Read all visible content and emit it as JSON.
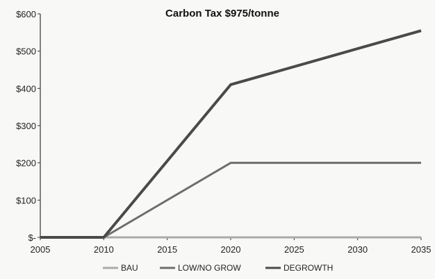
{
  "chart_data": {
    "type": "line",
    "title": "Carbon Tax $975/tonne",
    "xlabel": "",
    "ylabel": "",
    "x_ticks": [
      "2005",
      "2010",
      "2015",
      "2020",
      "2025",
      "2030",
      "2035"
    ],
    "y_ticks": [
      "$-",
      "$100",
      "$200",
      "$300",
      "$400",
      "$500",
      "$600"
    ],
    "xlim": [
      2005,
      2035
    ],
    "ylim": [
      0,
      600
    ],
    "grid": false,
    "legend_position": "bottom",
    "series": [
      {
        "name": "BAU",
        "x": [
          2005,
          2010,
          2020,
          2035
        ],
        "y": [
          0,
          0,
          0,
          0
        ],
        "color": "#aaaaaa"
      },
      {
        "name": "LOW/NO GROW",
        "x": [
          2005,
          2010,
          2020,
          2035
        ],
        "y": [
          0,
          0,
          200,
          200
        ],
        "color": "#6e6e6e"
      },
      {
        "name": "DEGROWTH",
        "x": [
          2005,
          2010,
          2020,
          2035
        ],
        "y": [
          0,
          0,
          410,
          555
        ],
        "color": "#4a4a4a"
      }
    ]
  }
}
